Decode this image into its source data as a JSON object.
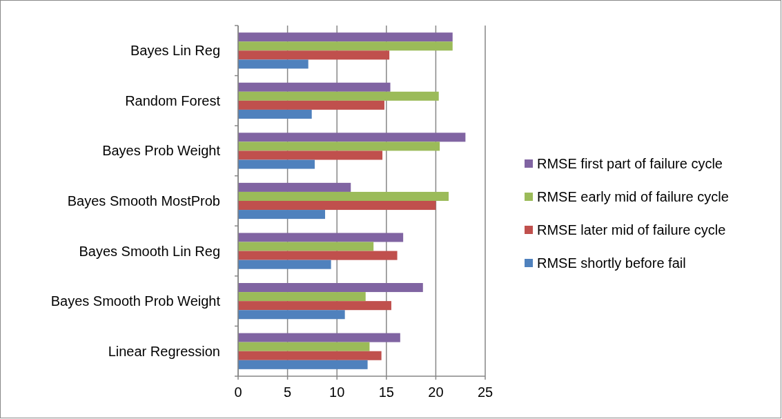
{
  "chart_data": {
    "type": "bar",
    "orientation": "horizontal",
    "categories": [
      "Bayes Lin Reg",
      "Random Forest",
      "Bayes Prob Weight",
      "Bayes Smooth MostProb",
      "Bayes Smooth Lin Reg",
      "Bayes Smooth Prob Weight",
      "Linear Regression"
    ],
    "series": [
      {
        "name": "RMSE first part of failure cycle",
        "color": "#8064a2",
        "values": [
          21.7,
          15.4,
          23.0,
          11.4,
          16.7,
          18.7,
          16.4
        ]
      },
      {
        "name": "RMSE early mid of failure cycle",
        "color": "#9bbb59",
        "values": [
          21.7,
          20.3,
          20.4,
          21.3,
          13.7,
          12.9,
          13.3
        ]
      },
      {
        "name": "RMSE later mid of failure cycle",
        "color": "#c0504d",
        "values": [
          15.3,
          14.8,
          14.6,
          20.0,
          16.1,
          15.5,
          14.5
        ]
      },
      {
        "name": "RMSE shortly before fail",
        "color": "#4f81bd",
        "values": [
          7.1,
          7.45,
          7.75,
          8.8,
          9.4,
          10.8,
          13.1
        ]
      }
    ],
    "xlim": [
      0,
      25
    ],
    "xticks": [
      0,
      5,
      10,
      15,
      20,
      25
    ],
    "grid": "x",
    "legend": "right"
  }
}
